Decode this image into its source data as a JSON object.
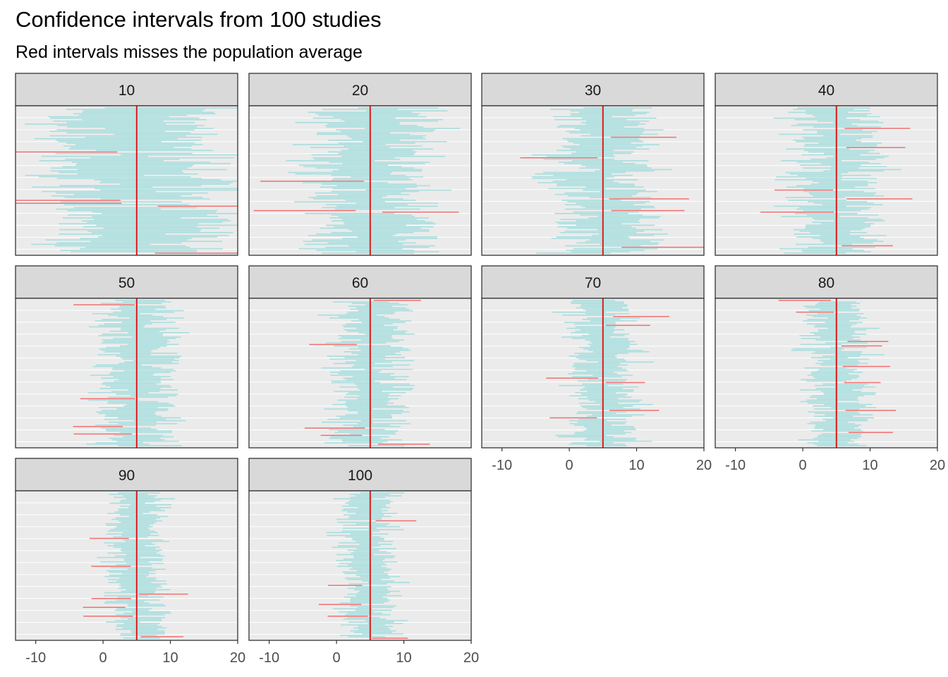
{
  "chart_data": {
    "type": "faceted-interval",
    "title": "Confidence intervals from 100 studies",
    "subtitle": "Red intervals misses the population average",
    "xlabel": "",
    "ylabel": "",
    "xlim": [
      -13,
      20
    ],
    "x_ticks": [
      -10,
      0,
      10,
      20
    ],
    "population_average": 5,
    "studies_per_panel": 100,
    "facets": [
      {
        "label": "10",
        "half_width_mean": 9.5,
        "miss_count": 5
      },
      {
        "label": "20",
        "half_width_mean": 6.5,
        "miss_count": 3
      },
      {
        "label": "30",
        "half_width_mean": 5.3,
        "miss_count": 5
      },
      {
        "label": "40",
        "half_width_mean": 4.6,
        "miss_count": 6
      },
      {
        "label": "50",
        "half_width_mean": 4.1,
        "miss_count": 4
      },
      {
        "label": "60",
        "half_width_mean": 3.8,
        "miss_count": 5
      },
      {
        "label": "70",
        "half_width_mean": 3.5,
        "miss_count": 6
      },
      {
        "label": "80",
        "half_width_mean": 3.3,
        "miss_count": 8
      },
      {
        "label": "90",
        "half_width_mean": 3.1,
        "miss_count": 7
      },
      {
        "label": "100",
        "half_width_mean": 2.9,
        "miss_count": 5
      }
    ],
    "grid": true,
    "colors": {
      "covered": "#a8dede",
      "missed": "#f07070",
      "mean_line": "#dd1a1a",
      "panel_bg": "#ebebeb",
      "strip_bg": "#d9d9d9",
      "gridline": "#ffffff"
    }
  }
}
